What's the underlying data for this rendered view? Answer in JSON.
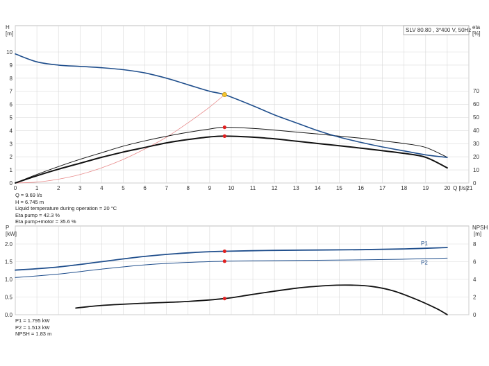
{
  "colors": {
    "head_curve": "#1f4e8c",
    "efficiency": "#111111",
    "system_curve": "#e88a8a",
    "duty_point_top": "#f4c430",
    "duty_point": "#e02020",
    "power_curves": "#1f4e8c",
    "npsh_curve": "#111111",
    "grid": "#d9d9d9"
  },
  "chart_data": [
    {
      "type": "line",
      "title": "SLV 80.80 , 3*400 V, 50Hz",
      "xlabel": "Q [l/s]",
      "ylabel": "H [m]",
      "y2label": "eta [%]",
      "xlim": [
        0,
        21
      ],
      "ylim": [
        0,
        10
      ],
      "y2lim": [
        0,
        70
      ],
      "grid": true,
      "x_ticks": [
        0,
        1,
        2,
        3,
        4,
        5,
        6,
        7,
        8,
        9,
        10,
        11,
        12,
        13,
        14,
        15,
        16,
        17,
        18,
        19,
        20,
        21
      ],
      "y_ticks": [
        0,
        1,
        2,
        3,
        4,
        5,
        6,
        7,
        8,
        9,
        10
      ],
      "y2_ticks": [
        0,
        10,
        20,
        30,
        40,
        50,
        60,
        70
      ],
      "series": [
        {
          "axis": "y",
          "x": [
            0,
            1,
            2,
            3,
            4,
            5,
            6,
            7,
            8,
            9,
            9.69,
            11,
            12,
            13,
            14,
            15,
            16,
            17,
            18,
            19,
            20
          ],
          "values": [
            9.85,
            9.25,
            9.0,
            8.9,
            8.8,
            8.65,
            8.4,
            8.0,
            7.5,
            7.0,
            6.745,
            5.9,
            5.2,
            4.6,
            4.0,
            3.5,
            3.1,
            2.75,
            2.45,
            2.15,
            1.95
          ]
        },
        {
          "axis": "y2",
          "x": [
            0,
            1,
            2,
            3,
            4,
            5,
            6,
            7,
            8,
            9,
            9.69,
            11,
            12,
            13,
            14,
            15,
            16,
            17,
            18,
            19,
            20
          ],
          "values": [
            0,
            6.5,
            12.5,
            18,
            23,
            28,
            32,
            35.5,
            38.5,
            41,
            42.3,
            41.5,
            40.2,
            38.7,
            37.2,
            35.6,
            34,
            32,
            30,
            27,
            19.5
          ]
        },
        {
          "axis": "y2",
          "x": [
            0,
            1,
            2,
            3,
            4,
            5,
            6,
            7,
            8,
            9,
            9.69,
            11,
            12,
            13,
            14,
            15,
            16,
            17,
            18,
            19,
            20
          ],
          "values": [
            0,
            5.5,
            10.5,
            15,
            19.5,
            23.5,
            27,
            30.5,
            33,
            35,
            35.6,
            34.8,
            33.5,
            31.8,
            30,
            28.3,
            26.5,
            24.5,
            22.5,
            19.5,
            11.5
          ]
        },
        {
          "axis": "y",
          "x": [
            0,
            1,
            2,
            3,
            4,
            5,
            6,
            7,
            8,
            9,
            9.69
          ],
          "values": [
            0,
            0.07,
            0.29,
            0.65,
            1.16,
            1.8,
            2.6,
            3.5,
            4.6,
            5.8,
            6.745
          ]
        }
      ],
      "duty_point": {
        "x": 9.69,
        "y": 6.745,
        "eta_pump": 42.3,
        "eta_total": 35.6
      },
      "info_lines": [
        "Q = 9.69 l/s",
        "H = 6.745 m",
        "Liquid temperature during operation = 20 °C",
        "Eta pump = 42.3 %",
        "Eta pump+motor = 35.6 %"
      ]
    },
    {
      "type": "line",
      "ylabel": "P [kW]",
      "y2label": "NPSH [m]",
      "xlim": [
        0,
        21
      ],
      "ylim": [
        0,
        2.0
      ],
      "y2lim": [
        0,
        8
      ],
      "grid": true,
      "y_ticks": [
        0,
        0.5,
        1.0,
        1.5,
        2.0
      ],
      "y_tick_labels": [
        "0.0",
        "0.5",
        "1.0",
        "1.5",
        "2.0"
      ],
      "y2_ticks": [
        0,
        2,
        4,
        6,
        8
      ],
      "series": [
        {
          "name": "P1",
          "axis": "y",
          "x": [
            0,
            2,
            4,
            6,
            8,
            9.69,
            12,
            14,
            16,
            18,
            20
          ],
          "values": [
            1.26,
            1.35,
            1.5,
            1.65,
            1.75,
            1.795,
            1.82,
            1.83,
            1.84,
            1.86,
            1.9
          ]
        },
        {
          "name": "P2",
          "axis": "y",
          "x": [
            0,
            2,
            4,
            6,
            8,
            9.69,
            12,
            14,
            16,
            18,
            20
          ],
          "values": [
            1.05,
            1.15,
            1.29,
            1.41,
            1.48,
            1.513,
            1.53,
            1.54,
            1.55,
            1.57,
            1.6
          ]
        },
        {
          "axis": "y2",
          "x": [
            2.8,
            4,
            6,
            8,
            9.69,
            11,
            13,
            14.5,
            15.5,
            16.5,
            17.5,
            18.5,
            19.5,
            20
          ],
          "values": [
            0.75,
            1.05,
            1.3,
            1.5,
            1.83,
            2.3,
            3.0,
            3.3,
            3.35,
            3.2,
            2.7,
            1.8,
            0.7,
            0.0
          ]
        }
      ],
      "duty_points": [
        {
          "axis": "y",
          "x": 9.69,
          "y": 1.795
        },
        {
          "axis": "y",
          "x": 9.69,
          "y": 1.513
        },
        {
          "axis": "y2",
          "x": 9.69,
          "y": 1.83
        }
      ],
      "info_lines": [
        "P1 = 1.795 kW",
        "P2 = 1.513 kW",
        "NPSH = 1.83 m"
      ]
    }
  ]
}
